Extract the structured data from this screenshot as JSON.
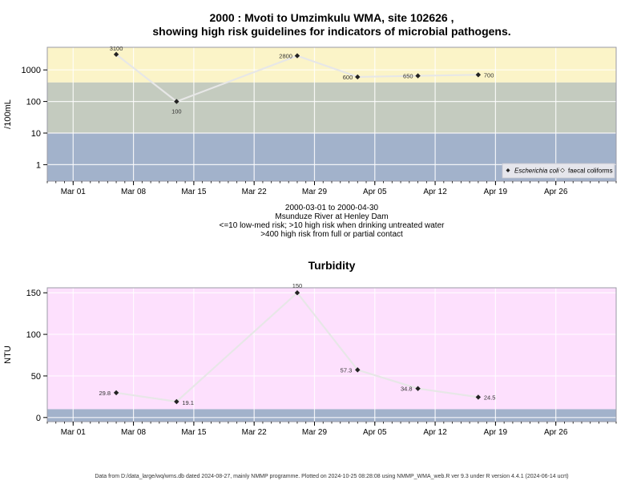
{
  "chart_data": [
    {
      "type": "line",
      "title": [
        "2000 : Mvoti to Umzimkulu WMA, site 102626 ,",
        "showing high risk guidelines for indicators of microbial pathogens."
      ],
      "subtitle": [
        "2000-03-01 to 2000-04-30",
        "Msunduze River at Henley Dam",
        "<=10 low-med risk; >10 high risk when drinking untreated water",
        ">400 high risk from full or partial contact"
      ],
      "ylabel": "/100mL",
      "y_scale": "log",
      "y_ticks": [
        1,
        10,
        100,
        1000
      ],
      "y_tick_labels": [
        "1",
        "10",
        "100",
        "1000"
      ],
      "x_tick_labels": [
        "Mar 01",
        "Mar 08",
        "Mar 15",
        "Mar 22",
        "Mar 29",
        "Apr 05",
        "Apr 12",
        "Apr 19",
        "Apr 26"
      ],
      "x_ticks": [
        "2000-03-01",
        "2000-03-08",
        "2000-03-15",
        "2000-03-22",
        "2000-03-29",
        "2000-04-05",
        "2000-04-12",
        "2000-04-19",
        "2000-04-26"
      ],
      "xlim": [
        "2000-02-27",
        "2000-05-03"
      ],
      "ylim": [
        0.3,
        5200
      ],
      "grid": true,
      "risk_bands": [
        {
          "from": 400,
          "to": 5200,
          "color": "#fbf4c8"
        },
        {
          "from": 10,
          "to": 400,
          "color": "#c4cbbf"
        },
        {
          "from": 0.3,
          "to": 10,
          "color": "#a2b2cb"
        }
      ],
      "legend_position": "bottom-right",
      "legend": [
        "Escherichia coli",
        "faecal coliforms"
      ],
      "series": [
        {
          "name": "Escherichia coli",
          "x": [
            "2000-03-06",
            "2000-03-13",
            "2000-03-27",
            "2000-04-03",
            "2000-04-10",
            "2000-04-17"
          ],
          "values": [
            3100,
            100,
            2800,
            600,
            650,
            700
          ],
          "labels": [
            "3100",
            "100",
            "2800",
            "600",
            "650",
            "700"
          ]
        }
      ]
    },
    {
      "type": "line",
      "title": "Turbidity",
      "ylabel": "NTU",
      "y_ticks": [
        0,
        50,
        100,
        150
      ],
      "y_tick_labels": [
        "0",
        "50",
        "100",
        "150"
      ],
      "x_tick_labels": [
        "Mar 01",
        "Mar 08",
        "Mar 15",
        "Mar 22",
        "Mar 29",
        "Apr 05",
        "Apr 12",
        "Apr 19",
        "Apr 26"
      ],
      "x_ticks": [
        "2000-03-01",
        "2000-03-08",
        "2000-03-15",
        "2000-03-22",
        "2000-03-29",
        "2000-04-05",
        "2000-04-12",
        "2000-04-19",
        "2000-04-26"
      ],
      "xlim": [
        "2000-02-27",
        "2000-05-03"
      ],
      "ylim": [
        -5,
        156
      ],
      "grid": true,
      "risk_bands": [
        {
          "from": 10,
          "to": 156,
          "color": "#fde0fd"
        },
        {
          "from": -5,
          "to": 10,
          "color": "#a2b2cb"
        }
      ],
      "series": [
        {
          "x": [
            "2000-03-06",
            "2000-03-13",
            "2000-03-27",
            "2000-04-03",
            "2000-04-10",
            "2000-04-17"
          ],
          "values": [
            29.8,
            19.1,
            150,
            57.3,
            34.8,
            24.5
          ],
          "labels": [
            "29.8",
            "19.1",
            "150",
            "57.3",
            "34.8",
            "24.5"
          ]
        }
      ]
    }
  ],
  "footer": "Data from D:/data_large/wq/wms.db dated 2024-08-27, mainly NMMP programme. Plotted on 2024-10-25 08:28:08 using NMMP_WMA_web.R ver 9.3 under R version 4.4.1 (2024-06-14 ucrt)"
}
